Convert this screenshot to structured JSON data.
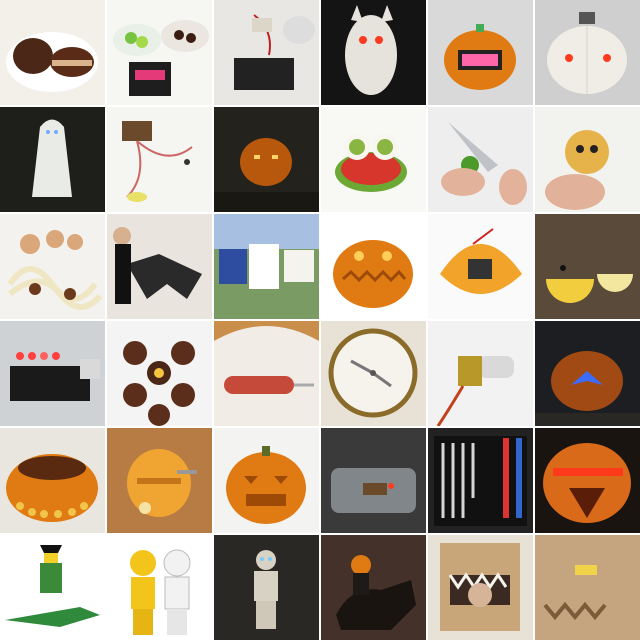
{
  "tiles": [
    {
      "name": "tile-chocolate-cakes",
      "kind": "cakes"
    },
    {
      "name": "tile-candy-bowls",
      "kind": "candy"
    },
    {
      "name": "tile-electronics-battery",
      "kind": "battery"
    },
    {
      "name": "tile-bat-plush-red-eyes",
      "kind": "plush"
    },
    {
      "name": "tile-led-display-pumpkin",
      "kind": "ledpumpkin"
    },
    {
      "name": "tile-white-pumpkin-red-eyes",
      "kind": "whitepumpkin"
    },
    {
      "name": "tile-ghost",
      "kind": "ghost"
    },
    {
      "name": "tile-circuit-wires",
      "kind": "circuit"
    },
    {
      "name": "tile-glowing-pumpkin-night",
      "kind": "nightpumpkin"
    },
    {
      "name": "tile-eyeball-salad",
      "kind": "salad"
    },
    {
      "name": "tile-knife-grape",
      "kind": "knife"
    },
    {
      "name": "tile-cookie-eyes",
      "kind": "cookie"
    },
    {
      "name": "tile-spaghetti-monster",
      "kind": "spaghetti"
    },
    {
      "name": "tile-bat-costume",
      "kind": "batcostume"
    },
    {
      "name": "tile-outdoor-signs",
      "kind": "outdoor"
    },
    {
      "name": "tile-jack-o-lantern-teeth",
      "kind": "teethpumpkin"
    },
    {
      "name": "tile-squash-gadget",
      "kind": "squash"
    },
    {
      "name": "tile-pacman-gourds",
      "kind": "pacman"
    },
    {
      "name": "tile-led-board",
      "kind": "ledboard"
    },
    {
      "name": "tile-radioactive-cupcakes",
      "kind": "cupcakes"
    },
    {
      "name": "tile-hotdog-on-fork",
      "kind": "hotdog"
    },
    {
      "name": "tile-fork-clock-plate",
      "kind": "clock"
    },
    {
      "name": "tile-bulb-fixture",
      "kind": "bulb"
    },
    {
      "name": "tile-blue-light-pumpkin",
      "kind": "bluepumpkin"
    },
    {
      "name": "tile-dalek-pumpkin-bowl",
      "kind": "bowl"
    },
    {
      "name": "tile-dalek-pumpkin",
      "kind": "dalek"
    },
    {
      "name": "tile-carved-pumpkin-face",
      "kind": "carved"
    },
    {
      "name": "tile-glass-jar-led",
      "kind": "jar"
    },
    {
      "name": "tile-carving-tools-case",
      "kind": "tools"
    },
    {
      "name": "tile-cylon-pumpkin",
      "kind": "cylon"
    },
    {
      "name": "tile-lego-crocodile",
      "kind": "croc"
    },
    {
      "name": "tile-lego-astronauts",
      "kind": "astronauts"
    },
    {
      "name": "tile-lego-glowing-figure",
      "kind": "legoglow"
    },
    {
      "name": "tile-headless-horseman",
      "kind": "horseman"
    },
    {
      "name": "tile-cardboard-monster-mask",
      "kind": "mask"
    },
    {
      "name": "tile-cardboard-box-face",
      "kind": "boxface"
    }
  ],
  "colors": {
    "pumpkin": "#e07a12",
    "pumpkinDark": "#9c4a06",
    "night": "#1c1a18",
    "chocolate": "#4a2716",
    "paper": "#f2f0ec",
    "led": "#ff3b1f",
    "blueLed": "#3b6bff"
  }
}
